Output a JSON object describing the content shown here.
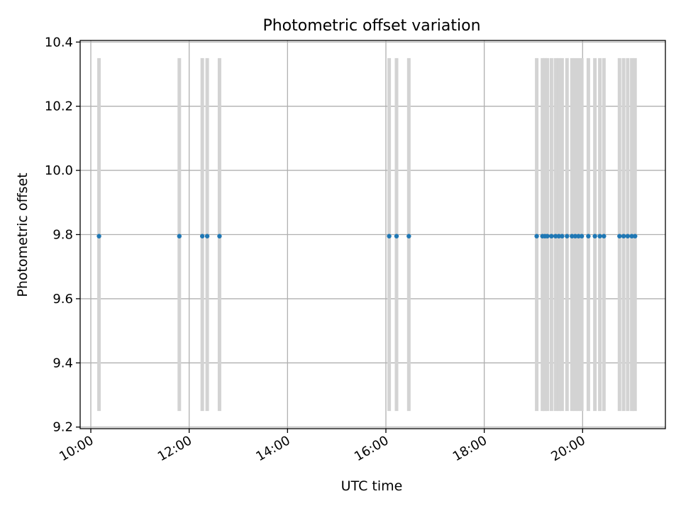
{
  "chart_data": {
    "type": "scatter",
    "title": "Photometric offset variation",
    "xlabel": "UTC time",
    "ylabel": "Photometric offset",
    "xlim": [
      "09:47",
      "21:41"
    ],
    "ylim": [
      9.195,
      10.405
    ],
    "x_ticks": [
      "10:00",
      "12:00",
      "14:00",
      "16:00",
      "18:00",
      "20:00"
    ],
    "y_ticks": [
      "9.2",
      "9.4",
      "9.6",
      "9.8",
      "10.0",
      "10.2",
      "10.4"
    ],
    "grid": true,
    "band_range": [
      9.25,
      10.35
    ],
    "marker_color": "#1f77b4",
    "band_color": "#d3d3d3",
    "grid_color": "#b0b0b0",
    "points": {
      "x": [
        "10:10",
        "11:48",
        "12:16",
        "12:22",
        "12:37",
        "16:04",
        "16:13",
        "16:28",
        "19:04",
        "19:11",
        "19:14",
        "19:17",
        "19:22",
        "19:27",
        "19:31",
        "19:35",
        "19:41",
        "19:47",
        "19:51",
        "19:55",
        "19:59",
        "20:07",
        "20:15",
        "20:21",
        "20:26",
        "20:45",
        "20:50",
        "20:55",
        "21:00",
        "21:04"
      ],
      "y": [
        9.795,
        9.795,
        9.795,
        9.795,
        9.795,
        9.795,
        9.795,
        9.795,
        9.795,
        9.795,
        9.795,
        9.795,
        9.795,
        9.795,
        9.795,
        9.795,
        9.795,
        9.795,
        9.795,
        9.795,
        9.795,
        9.795,
        9.795,
        9.795,
        9.795,
        9.795,
        9.795,
        9.795,
        9.795,
        9.795
      ]
    }
  }
}
